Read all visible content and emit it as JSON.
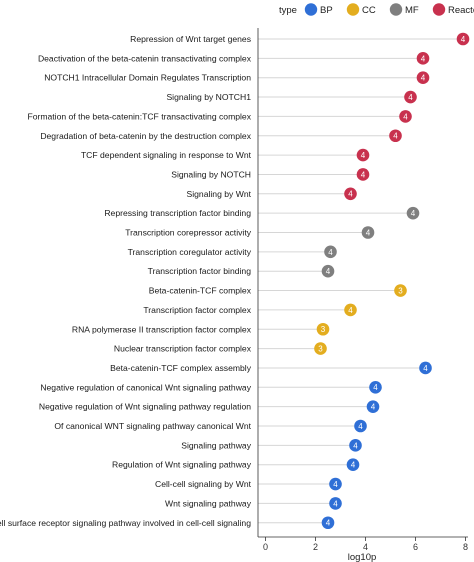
{
  "chart_data": {
    "type": "lollipop",
    "xlabel": "log10p",
    "xlim": [
      -0.3,
      8.1
    ],
    "xticks": [
      0,
      2,
      4,
      6,
      8
    ],
    "legend": {
      "title": "type",
      "placement": "top-right",
      "items": [
        {
          "name": "BP",
          "color": "#2f6fd6"
        },
        {
          "name": "CC",
          "color": "#e3ad1f"
        },
        {
          "name": "MF",
          "color": "#7f7f7f"
        },
        {
          "name": "Reactome",
          "color": "#c8314e"
        }
      ]
    },
    "points": [
      {
        "term": "Repression of Wnt target genes",
        "value": 7.9,
        "count": "4",
        "type": "Reactome"
      },
      {
        "term": "Deactivation of the beta-catenin transactivating complex",
        "value": 6.3,
        "count": "4",
        "type": "Reactome"
      },
      {
        "term": "NOTCH1 Intracellular Domain Regulates Transcription",
        "value": 6.3,
        "count": "4",
        "type": "Reactome"
      },
      {
        "term": "Signaling by NOTCH1",
        "value": 5.8,
        "count": "4",
        "type": "Reactome"
      },
      {
        "term": "Formation of the beta-catenin:TCF transactivating complex",
        "value": 5.6,
        "count": "4",
        "type": "Reactome"
      },
      {
        "term": "Degradation of beta-catenin by the destruction complex",
        "value": 5.2,
        "count": "4",
        "type": "Reactome"
      },
      {
        "term": "TCF dependent signaling in response to Wnt",
        "value": 3.9,
        "count": "4",
        "type": "Reactome"
      },
      {
        "term": "Signaling by NOTCH",
        "value": 3.9,
        "count": "4",
        "type": "Reactome"
      },
      {
        "term": "Signaling by Wnt",
        "value": 3.4,
        "count": "4",
        "type": "Reactome"
      },
      {
        "term": "Repressing transcription factor binding",
        "value": 5.9,
        "count": "4",
        "type": "MF"
      },
      {
        "term": "Transcription corepressor activity",
        "value": 4.1,
        "count": "4",
        "type": "MF"
      },
      {
        "term": "Transcription coregulator activity",
        "value": 2.6,
        "count": "4",
        "type": "MF"
      },
      {
        "term": "Transcription factor binding",
        "value": 2.5,
        "count": "4",
        "type": "MF"
      },
      {
        "term": "Beta-catenin-TCF complex",
        "value": 5.4,
        "count": "3",
        "type": "CC"
      },
      {
        "term": "Transcription factor complex",
        "value": 3.4,
        "count": "4",
        "type": "CC"
      },
      {
        "term": "RNA polymerase II transcription factor complex",
        "value": 2.3,
        "count": "3",
        "type": "CC"
      },
      {
        "term": "Nuclear transcription factor complex",
        "value": 2.2,
        "count": "3",
        "type": "CC"
      },
      {
        "term": "Beta-catenin-TCF complex assembly",
        "value": 6.4,
        "count": "4",
        "type": "BP"
      },
      {
        "term": "Negative regulation of canonical Wnt signaling pathway",
        "value": 4.4,
        "count": "4",
        "type": "BP"
      },
      {
        "term": "Negative regulation of Wnt signaling pathway regulation",
        "value": 4.3,
        "count": "4",
        "type": "BP"
      },
      {
        "term": "Of canonical WNT signaling pathway canonical Wnt",
        "value": 3.8,
        "count": "4",
        "type": "BP"
      },
      {
        "term": "Signaling pathway",
        "value": 3.6,
        "count": "4",
        "type": "BP"
      },
      {
        "term": "Regulation of Wnt signaling pathway",
        "value": 3.5,
        "count": "4",
        "type": "BP"
      },
      {
        "term": "Cell-cell signaling by Wnt",
        "value": 2.8,
        "count": "4",
        "type": "BP"
      },
      {
        "term": "Wnt signaling pathway",
        "value": 2.8,
        "count": "4",
        "type": "BP"
      },
      {
        "term": "Cell surface receptor signaling pathway involved in cell-cell signaling",
        "value": 2.5,
        "count": "4",
        "type": "BP"
      }
    ]
  }
}
